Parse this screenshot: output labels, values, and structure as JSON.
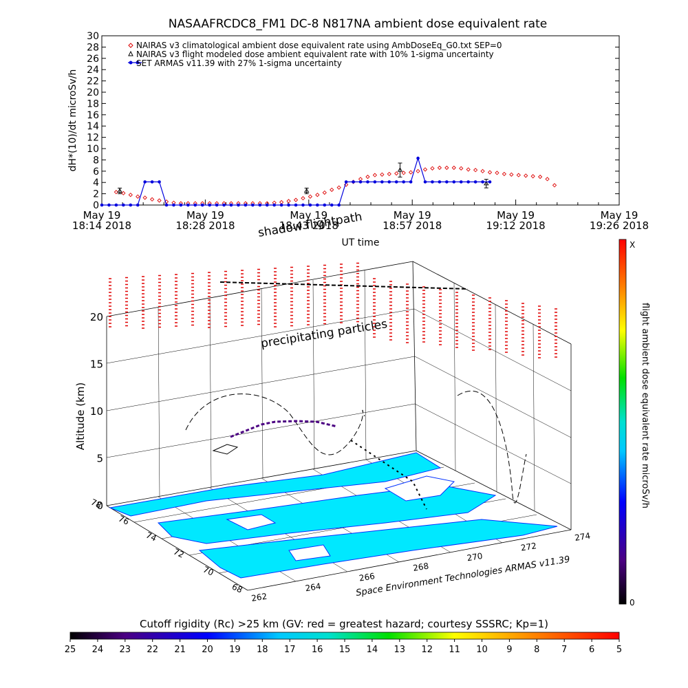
{
  "title": "NASAAFRCDC8_FM1 DC-8    N817NA ambient dose equivalent rate",
  "chart_data": [
    {
      "type": "line",
      "ylabel": "dH*(10)/dt microSv/h",
      "xlabel": "UT time",
      "ylim": [
        0,
        30
      ],
      "yticks": [
        "0",
        "2",
        "4",
        "6",
        "8",
        "10",
        "12",
        "14",
        "16",
        "18",
        "20",
        "22",
        "24",
        "26",
        "28",
        "30"
      ],
      "xticks": [
        {
          "date": "May 19",
          "time": "18:14 2018"
        },
        {
          "date": "May 19",
          "time": "18:28 2018"
        },
        {
          "date": "May 19",
          "time": "18:43 2018"
        },
        {
          "date": "May 19",
          "time": "18:57 2018"
        },
        {
          "date": "May 19",
          "time": "19:12 2018"
        },
        {
          "date": "May 19",
          "time": "19:26 2018"
        }
      ],
      "legend_position": "top-left",
      "series": [
        {
          "name": "NAIRAS v3 climatological ambient dose equivalent rate using AmbDoseEq_G0.txt SEP=0",
          "marker": "diamond",
          "color": "#dd0000",
          "x_minutes": [
            2.0,
            3.0,
            4.0,
            5.0,
            6.0,
            7.0,
            8.0,
            9.0,
            10.0,
            11.0,
            12.0,
            13.0,
            14.0,
            15.0,
            16.0,
            17.0,
            18.0,
            19.0,
            20.0,
            21.0,
            22.0,
            23.0,
            24.0,
            25.0,
            26.0,
            27.0,
            28.0,
            29.0,
            30.0,
            31.0,
            32.0,
            33.0,
            34.0,
            35.0,
            36.0,
            37.0,
            38.0,
            39.0,
            40.0,
            41.0,
            42.0,
            43.0,
            44.0,
            45.0,
            46.0,
            47.0,
            48.0,
            49.0,
            50.0,
            51.0,
            52.0,
            53.0,
            54.0,
            55.0,
            56.0,
            57.0,
            58.0,
            59.0,
            60.0,
            61.0,
            62.0,
            63.0
          ],
          "values": [
            2.3,
            2.1,
            1.8,
            1.5,
            1.3,
            1.0,
            0.8,
            0.6,
            0.4,
            0.3,
            0.3,
            0.3,
            0.3,
            0.3,
            0.3,
            0.3,
            0.3,
            0.3,
            0.3,
            0.3,
            0.3,
            0.3,
            0.4,
            0.5,
            0.7,
            0.9,
            1.2,
            1.5,
            1.8,
            2.2,
            2.7,
            3.1,
            3.6,
            4.1,
            4.6,
            5.0,
            5.3,
            5.4,
            5.5,
            5.6,
            5.7,
            5.8,
            6.0,
            6.3,
            6.5,
            6.6,
            6.6,
            6.6,
            6.5,
            6.3,
            6.2,
            6.0,
            5.8,
            5.7,
            5.5,
            5.4,
            5.3,
            5.2,
            5.1,
            5.0,
            4.6,
            3.5
          ]
        },
        {
          "name": "NAIRAS v3 flight modeled dose ambient equivalent rate with 10% 1-sigma uncertainty",
          "marker": "triangle",
          "color": "#000000",
          "x_minutes": [
            2.5,
            28.5,
            41.5,
            53.5
          ],
          "values": [
            2.5,
            2.5,
            6.2,
            3.8
          ]
        },
        {
          "name": "SET ARMAS v11.39 with 27% 1-sigma uncertainty",
          "marker": "dot",
          "color": "#0000dd",
          "x_minutes": [
            0,
            1,
            2,
            3,
            4,
            5,
            6,
            7,
            8,
            9,
            10,
            11,
            12,
            13,
            14,
            15,
            16,
            17,
            18,
            19,
            20,
            21,
            22,
            23,
            24,
            25,
            26,
            27,
            28,
            29,
            30,
            31,
            32,
            33,
            34,
            35,
            36,
            37,
            38,
            39,
            40,
            41,
            42,
            43,
            44,
            45,
            46,
            47,
            48,
            49,
            50,
            51,
            52,
            53,
            54
          ],
          "values": [
            0,
            0,
            0,
            0,
            0,
            0,
            4.1,
            4.1,
            4.1,
            0,
            0,
            0,
            0,
            0,
            0,
            0,
            0,
            0,
            0,
            0,
            0,
            0,
            0,
            0,
            0,
            0,
            0,
            0,
            0,
            0,
            0,
            0,
            0,
            0,
            4.1,
            4.1,
            4.1,
            4.1,
            4.1,
            4.1,
            4.1,
            4.1,
            4.1,
            4.1,
            8.3,
            4.1,
            4.1,
            4.1,
            4.1,
            4.1,
            4.1,
            4.1,
            4.1,
            4.1,
            4.1
          ]
        }
      ]
    },
    {
      "type": "3d-flight-track",
      "ylabel": "Altitude (km)",
      "z_ticks": [
        "0",
        "5",
        "10",
        "15",
        "20"
      ],
      "lat_ticks": [
        "68",
        "70",
        "72",
        "74",
        "76",
        "78"
      ],
      "lon_ticks": [
        "262",
        "264",
        "266",
        "268",
        "270",
        "272",
        "274"
      ],
      "annotations": [
        "shadow flightpath",
        "precipitating particles"
      ],
      "credit": "Space Environment Technologies ARMAS v11.39",
      "colorbar": {
        "label": "flight ambient dose equivalent rate microSv/h",
        "top": "X",
        "bottom": "0"
      }
    },
    {
      "type": "colorbar",
      "title": "Cutoff rigidity (Rc) >25 km (GV: red = greatest hazard; courtesy SSSRC; Kp=1)",
      "ticks": [
        "25",
        "24",
        "23",
        "22",
        "21",
        "20",
        "19",
        "18",
        "17",
        "16",
        "15",
        "14",
        "13",
        "12",
        "11",
        "10",
        "9",
        "8",
        "7",
        "6",
        "5"
      ]
    }
  ]
}
